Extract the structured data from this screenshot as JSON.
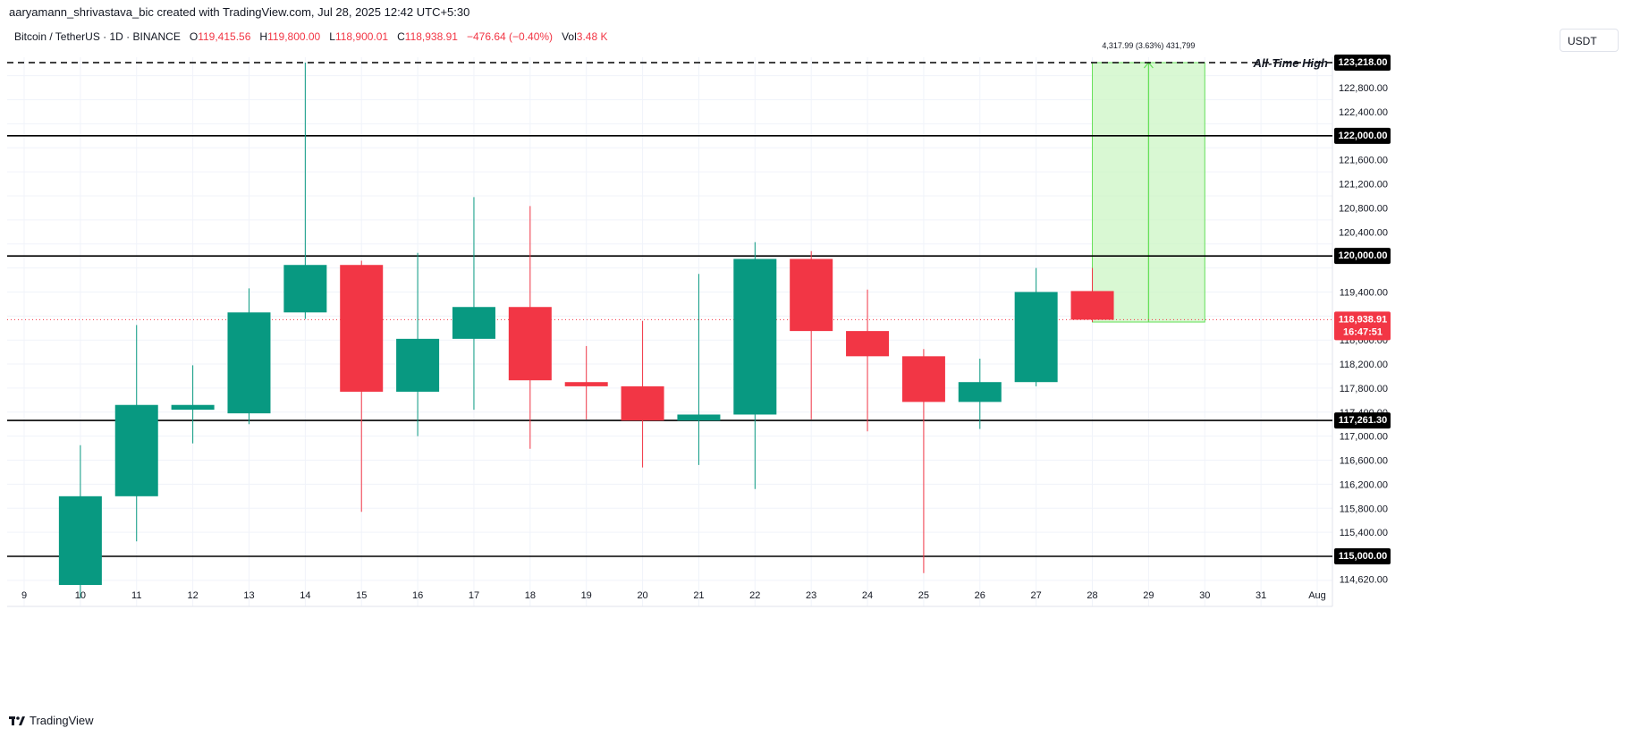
{
  "header": {
    "attribution": "aaryamann_shrivastava_bic created with TradingView.com, Jul 28, 2025 12:42 UTC+5:30",
    "symbol": "Bitcoin / TetherUS · 1D · BINANCE",
    "o_label": "O",
    "o_value": "119,415.56",
    "h_label": "H",
    "h_value": "119,800.00",
    "l_label": "L",
    "l_value": "118,900.01",
    "c_label": "C",
    "c_value": "118,938.91",
    "change": "−476.64 (−0.40%)",
    "vol_label": "Vol",
    "vol_value": "3.48 K"
  },
  "currency_button": "USDT",
  "footer_logo": "TradingView",
  "colors": {
    "up": "#089981",
    "down": "#f23645",
    "measure_fill": "#ccf5c4",
    "measure_line": "#66e05a"
  },
  "chart_data": {
    "type": "candlestick",
    "title": "Bitcoin / TetherUS · 1D · BINANCE",
    "x_ticks": [
      "9",
      "10",
      "11",
      "12",
      "13",
      "14",
      "15",
      "16",
      "17",
      "18",
      "19",
      "20",
      "21",
      "22",
      "23",
      "24",
      "25",
      "26",
      "27",
      "28",
      "29",
      "30",
      "31",
      "Aug"
    ],
    "y_ticks": [
      "122,800.00",
      "122,400.00",
      "121,600.00",
      "121,200.00",
      "120,800.00",
      "120,400.00",
      "119,400.00",
      "118,600.00",
      "118,200.00",
      "117,800.00",
      "117,400.00",
      "117,000.00",
      "116,600.00",
      "116,200.00",
      "115,800.00",
      "115,400.00",
      "114,620.00"
    ],
    "ylim": [
      114500,
      123450
    ],
    "candles": [
      {
        "date": "10",
        "open": 114300,
        "high": 116850,
        "low": 114300,
        "close": 116000
      },
      {
        "date": "11",
        "open": 116000,
        "high": 118850,
        "low": 115250,
        "close": 117520
      },
      {
        "date": "12",
        "open": 117440,
        "high": 118180,
        "low": 116880,
        "close": 117520
      },
      {
        "date": "13",
        "open": 117380,
        "high": 119460,
        "low": 117200,
        "close": 119060
      },
      {
        "date": "14",
        "open": 119060,
        "high": 123218,
        "low": 118950,
        "close": 119850
      },
      {
        "date": "15",
        "open": 119850,
        "high": 119920,
        "low": 115740,
        "close": 117740
      },
      {
        "date": "16",
        "open": 117740,
        "high": 120050,
        "low": 117000,
        "close": 118620
      },
      {
        "date": "17",
        "open": 118620,
        "high": 120980,
        "low": 117440,
        "close": 119150
      },
      {
        "date": "18",
        "open": 119150,
        "high": 120830,
        "low": 116790,
        "close": 117930
      },
      {
        "date": "19",
        "open": 117900,
        "high": 118500,
        "low": 117280,
        "close": 117830
      },
      {
        "date": "20",
        "open": 117830,
        "high": 118920,
        "low": 116480,
        "close": 117260
      },
      {
        "date": "21",
        "open": 117260,
        "high": 119700,
        "low": 116520,
        "close": 117360
      },
      {
        "date": "22",
        "open": 117360,
        "high": 120230,
        "low": 116120,
        "close": 119950
      },
      {
        "date": "23",
        "open": 119950,
        "high": 120080,
        "low": 117280,
        "close": 118750
      },
      {
        "date": "24",
        "open": 118750,
        "high": 119440,
        "low": 117080,
        "close": 118330
      },
      {
        "date": "25",
        "open": 118330,
        "high": 118450,
        "low": 114720,
        "close": 117570
      },
      {
        "date": "26",
        "open": 117570,
        "high": 118290,
        "low": 117120,
        "close": 117900
      },
      {
        "date": "27",
        "open": 117900,
        "high": 119800,
        "low": 117830,
        "close": 119400
      },
      {
        "date": "28",
        "open": 119415.56,
        "high": 119800,
        "low": 118900.01,
        "close": 118938.91
      }
    ],
    "horizontal_levels": [
      {
        "price": 123218,
        "label": "123,218.00",
        "style": "dashed",
        "annotation": "All-Time High"
      },
      {
        "price": 122000,
        "label": "122,000.00",
        "style": "solid"
      },
      {
        "price": 120000,
        "label": "120,000.00",
        "style": "solid"
      },
      {
        "price": 117261.3,
        "label": "117,261.30",
        "style": "solid"
      },
      {
        "price": 115000,
        "label": "115,000.00",
        "style": "solid"
      }
    ],
    "current_price": {
      "label": "118,938.91",
      "countdown": "16:47:51",
      "price": 118938.91
    },
    "measure": {
      "from_date": "28",
      "to_date": "30",
      "from_price": 118900,
      "to_price": 123218,
      "label": "4,317.99 (3.63%) 431,799"
    }
  }
}
